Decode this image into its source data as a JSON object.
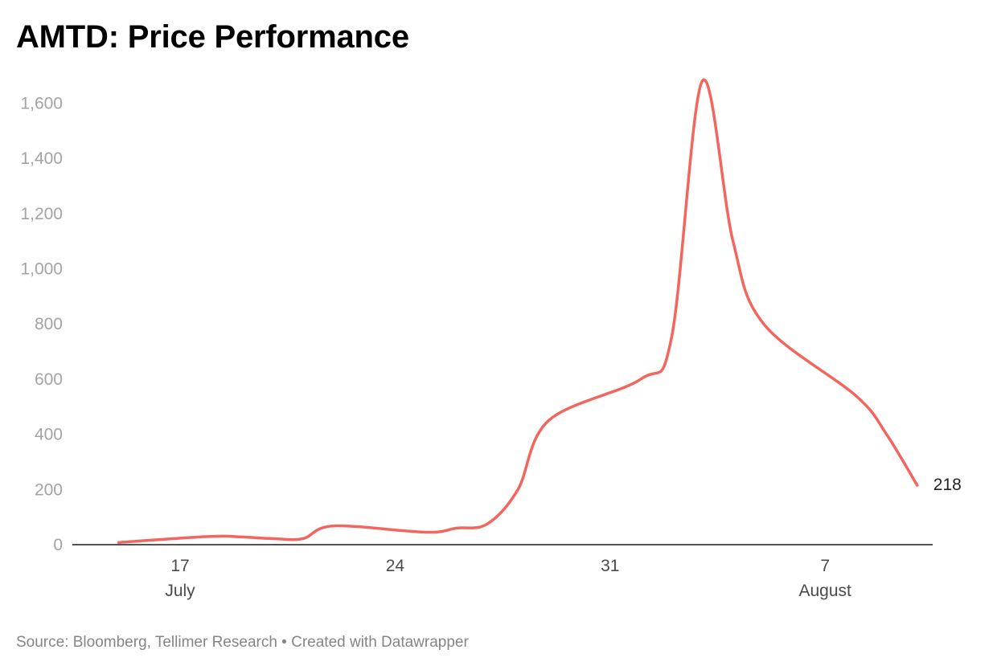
{
  "title": "AMTD: Price Performance",
  "footer": {
    "source": "Source: Bloomberg, Tellimer Research • Created with Datawrapper"
  },
  "chart_data": {
    "type": "line",
    "title": "AMTD: Price Performance",
    "xlabel": "",
    "ylabel": "",
    "ylim": [
      0,
      1700
    ],
    "y_ticks": [
      0,
      200,
      400,
      600,
      800,
      1000,
      1200,
      1400,
      1600
    ],
    "y_tick_labels": [
      "0",
      "200",
      "400",
      "600",
      "800",
      "1,000",
      "1,200",
      "1,400",
      "1,600"
    ],
    "x_ticks": [
      "2022-07-17",
      "2022-07-24",
      "2022-07-31",
      "2022-08-07"
    ],
    "x_tick_labels": [
      "17",
      "24",
      "31",
      "7"
    ],
    "month_labels": [
      {
        "date": "2022-07-17",
        "label": "July"
      },
      {
        "date": "2022-08-07",
        "label": "August"
      }
    ],
    "grid": false,
    "line_color": "#f2665e",
    "series": [
      {
        "dates": [
          "2022-07-15",
          "2022-07-18",
          "2022-07-19",
          "2022-07-20",
          "2022-07-21",
          "2022-07-22",
          "2022-07-25",
          "2022-07-26",
          "2022-07-27",
          "2022-07-28",
          "2022-07-29",
          "2022-08-01",
          "2022-08-02",
          "2022-08-03",
          "2022-08-04",
          "2022-08-05",
          "2022-08-08",
          "2022-08-09",
          "2022-08-10"
        ],
        "values": [
          8,
          30,
          28,
          22,
          22,
          68,
          45,
          60,
          75,
          200,
          450,
          600,
          750,
          1680,
          1100,
          800,
          540,
          400,
          215
        ]
      }
    ],
    "end_label": "218",
    "end_value": 218
  }
}
